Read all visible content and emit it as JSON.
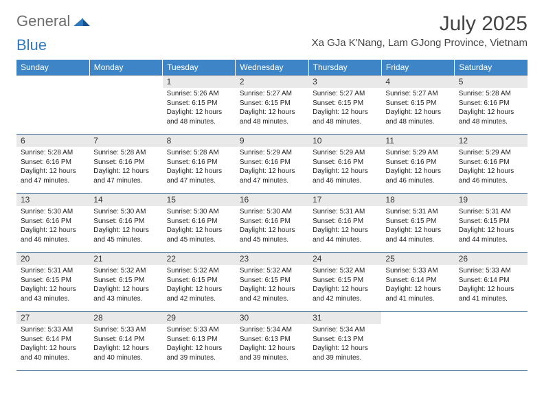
{
  "logo": {
    "general": "General",
    "blue": "Blue"
  },
  "title": {
    "month_year": "July 2025",
    "location": "Xa GJa K'Nang, Lam GJong Province, Vietnam"
  },
  "colors": {
    "header_bg": "#3d85c6",
    "header_text": "#ffffff",
    "row_border": "#2f5b8a",
    "daynum_bg": "#e9e9e9",
    "logo_general": "#6d6d6d",
    "logo_blue": "#2f7abf",
    "title_color": "#444444",
    "body_text": "#222222",
    "page_bg": "#ffffff"
  },
  "typography": {
    "month_year_fontsize": 30,
    "location_fontsize": 15,
    "logo_fontsize": 22,
    "weekday_fontsize": 12,
    "daynum_fontsize": 12,
    "daytext_fontsize": 10
  },
  "weekdays": [
    "Sunday",
    "Monday",
    "Tuesday",
    "Wednesday",
    "Thursday",
    "Friday",
    "Saturday"
  ],
  "weeks": [
    [
      {
        "day": "",
        "sunrise": "",
        "sunset": "",
        "daylight": "",
        "empty": true
      },
      {
        "day": "",
        "sunrise": "",
        "sunset": "",
        "daylight": "",
        "empty": true
      },
      {
        "day": "1",
        "sunrise": "Sunrise: 5:26 AM",
        "sunset": "Sunset: 6:15 PM",
        "daylight": "Daylight: 12 hours and 48 minutes."
      },
      {
        "day": "2",
        "sunrise": "Sunrise: 5:27 AM",
        "sunset": "Sunset: 6:15 PM",
        "daylight": "Daylight: 12 hours and 48 minutes."
      },
      {
        "day": "3",
        "sunrise": "Sunrise: 5:27 AM",
        "sunset": "Sunset: 6:15 PM",
        "daylight": "Daylight: 12 hours and 48 minutes."
      },
      {
        "day": "4",
        "sunrise": "Sunrise: 5:27 AM",
        "sunset": "Sunset: 6:15 PM",
        "daylight": "Daylight: 12 hours and 48 minutes."
      },
      {
        "day": "5",
        "sunrise": "Sunrise: 5:28 AM",
        "sunset": "Sunset: 6:16 PM",
        "daylight": "Daylight: 12 hours and 48 minutes."
      }
    ],
    [
      {
        "day": "6",
        "sunrise": "Sunrise: 5:28 AM",
        "sunset": "Sunset: 6:16 PM",
        "daylight": "Daylight: 12 hours and 47 minutes."
      },
      {
        "day": "7",
        "sunrise": "Sunrise: 5:28 AM",
        "sunset": "Sunset: 6:16 PM",
        "daylight": "Daylight: 12 hours and 47 minutes."
      },
      {
        "day": "8",
        "sunrise": "Sunrise: 5:28 AM",
        "sunset": "Sunset: 6:16 PM",
        "daylight": "Daylight: 12 hours and 47 minutes."
      },
      {
        "day": "9",
        "sunrise": "Sunrise: 5:29 AM",
        "sunset": "Sunset: 6:16 PM",
        "daylight": "Daylight: 12 hours and 47 minutes."
      },
      {
        "day": "10",
        "sunrise": "Sunrise: 5:29 AM",
        "sunset": "Sunset: 6:16 PM",
        "daylight": "Daylight: 12 hours and 46 minutes."
      },
      {
        "day": "11",
        "sunrise": "Sunrise: 5:29 AM",
        "sunset": "Sunset: 6:16 PM",
        "daylight": "Daylight: 12 hours and 46 minutes."
      },
      {
        "day": "12",
        "sunrise": "Sunrise: 5:29 AM",
        "sunset": "Sunset: 6:16 PM",
        "daylight": "Daylight: 12 hours and 46 minutes."
      }
    ],
    [
      {
        "day": "13",
        "sunrise": "Sunrise: 5:30 AM",
        "sunset": "Sunset: 6:16 PM",
        "daylight": "Daylight: 12 hours and 46 minutes."
      },
      {
        "day": "14",
        "sunrise": "Sunrise: 5:30 AM",
        "sunset": "Sunset: 6:16 PM",
        "daylight": "Daylight: 12 hours and 45 minutes."
      },
      {
        "day": "15",
        "sunrise": "Sunrise: 5:30 AM",
        "sunset": "Sunset: 6:16 PM",
        "daylight": "Daylight: 12 hours and 45 minutes."
      },
      {
        "day": "16",
        "sunrise": "Sunrise: 5:30 AM",
        "sunset": "Sunset: 6:16 PM",
        "daylight": "Daylight: 12 hours and 45 minutes."
      },
      {
        "day": "17",
        "sunrise": "Sunrise: 5:31 AM",
        "sunset": "Sunset: 6:16 PM",
        "daylight": "Daylight: 12 hours and 44 minutes."
      },
      {
        "day": "18",
        "sunrise": "Sunrise: 5:31 AM",
        "sunset": "Sunset: 6:15 PM",
        "daylight": "Daylight: 12 hours and 44 minutes."
      },
      {
        "day": "19",
        "sunrise": "Sunrise: 5:31 AM",
        "sunset": "Sunset: 6:15 PM",
        "daylight": "Daylight: 12 hours and 44 minutes."
      }
    ],
    [
      {
        "day": "20",
        "sunrise": "Sunrise: 5:31 AM",
        "sunset": "Sunset: 6:15 PM",
        "daylight": "Daylight: 12 hours and 43 minutes."
      },
      {
        "day": "21",
        "sunrise": "Sunrise: 5:32 AM",
        "sunset": "Sunset: 6:15 PM",
        "daylight": "Daylight: 12 hours and 43 minutes."
      },
      {
        "day": "22",
        "sunrise": "Sunrise: 5:32 AM",
        "sunset": "Sunset: 6:15 PM",
        "daylight": "Daylight: 12 hours and 42 minutes."
      },
      {
        "day": "23",
        "sunrise": "Sunrise: 5:32 AM",
        "sunset": "Sunset: 6:15 PM",
        "daylight": "Daylight: 12 hours and 42 minutes."
      },
      {
        "day": "24",
        "sunrise": "Sunrise: 5:32 AM",
        "sunset": "Sunset: 6:15 PM",
        "daylight": "Daylight: 12 hours and 42 minutes."
      },
      {
        "day": "25",
        "sunrise": "Sunrise: 5:33 AM",
        "sunset": "Sunset: 6:14 PM",
        "daylight": "Daylight: 12 hours and 41 minutes."
      },
      {
        "day": "26",
        "sunrise": "Sunrise: 5:33 AM",
        "sunset": "Sunset: 6:14 PM",
        "daylight": "Daylight: 12 hours and 41 minutes."
      }
    ],
    [
      {
        "day": "27",
        "sunrise": "Sunrise: 5:33 AM",
        "sunset": "Sunset: 6:14 PM",
        "daylight": "Daylight: 12 hours and 40 minutes."
      },
      {
        "day": "28",
        "sunrise": "Sunrise: 5:33 AM",
        "sunset": "Sunset: 6:14 PM",
        "daylight": "Daylight: 12 hours and 40 minutes."
      },
      {
        "day": "29",
        "sunrise": "Sunrise: 5:33 AM",
        "sunset": "Sunset: 6:13 PM",
        "daylight": "Daylight: 12 hours and 39 minutes."
      },
      {
        "day": "30",
        "sunrise": "Sunrise: 5:34 AM",
        "sunset": "Sunset: 6:13 PM",
        "daylight": "Daylight: 12 hours and 39 minutes."
      },
      {
        "day": "31",
        "sunrise": "Sunrise: 5:34 AM",
        "sunset": "Sunset: 6:13 PM",
        "daylight": "Daylight: 12 hours and 39 minutes."
      },
      {
        "day": "",
        "sunrise": "",
        "sunset": "",
        "daylight": "",
        "empty": true
      },
      {
        "day": "",
        "sunrise": "",
        "sunset": "",
        "daylight": "",
        "empty": true
      }
    ]
  ]
}
